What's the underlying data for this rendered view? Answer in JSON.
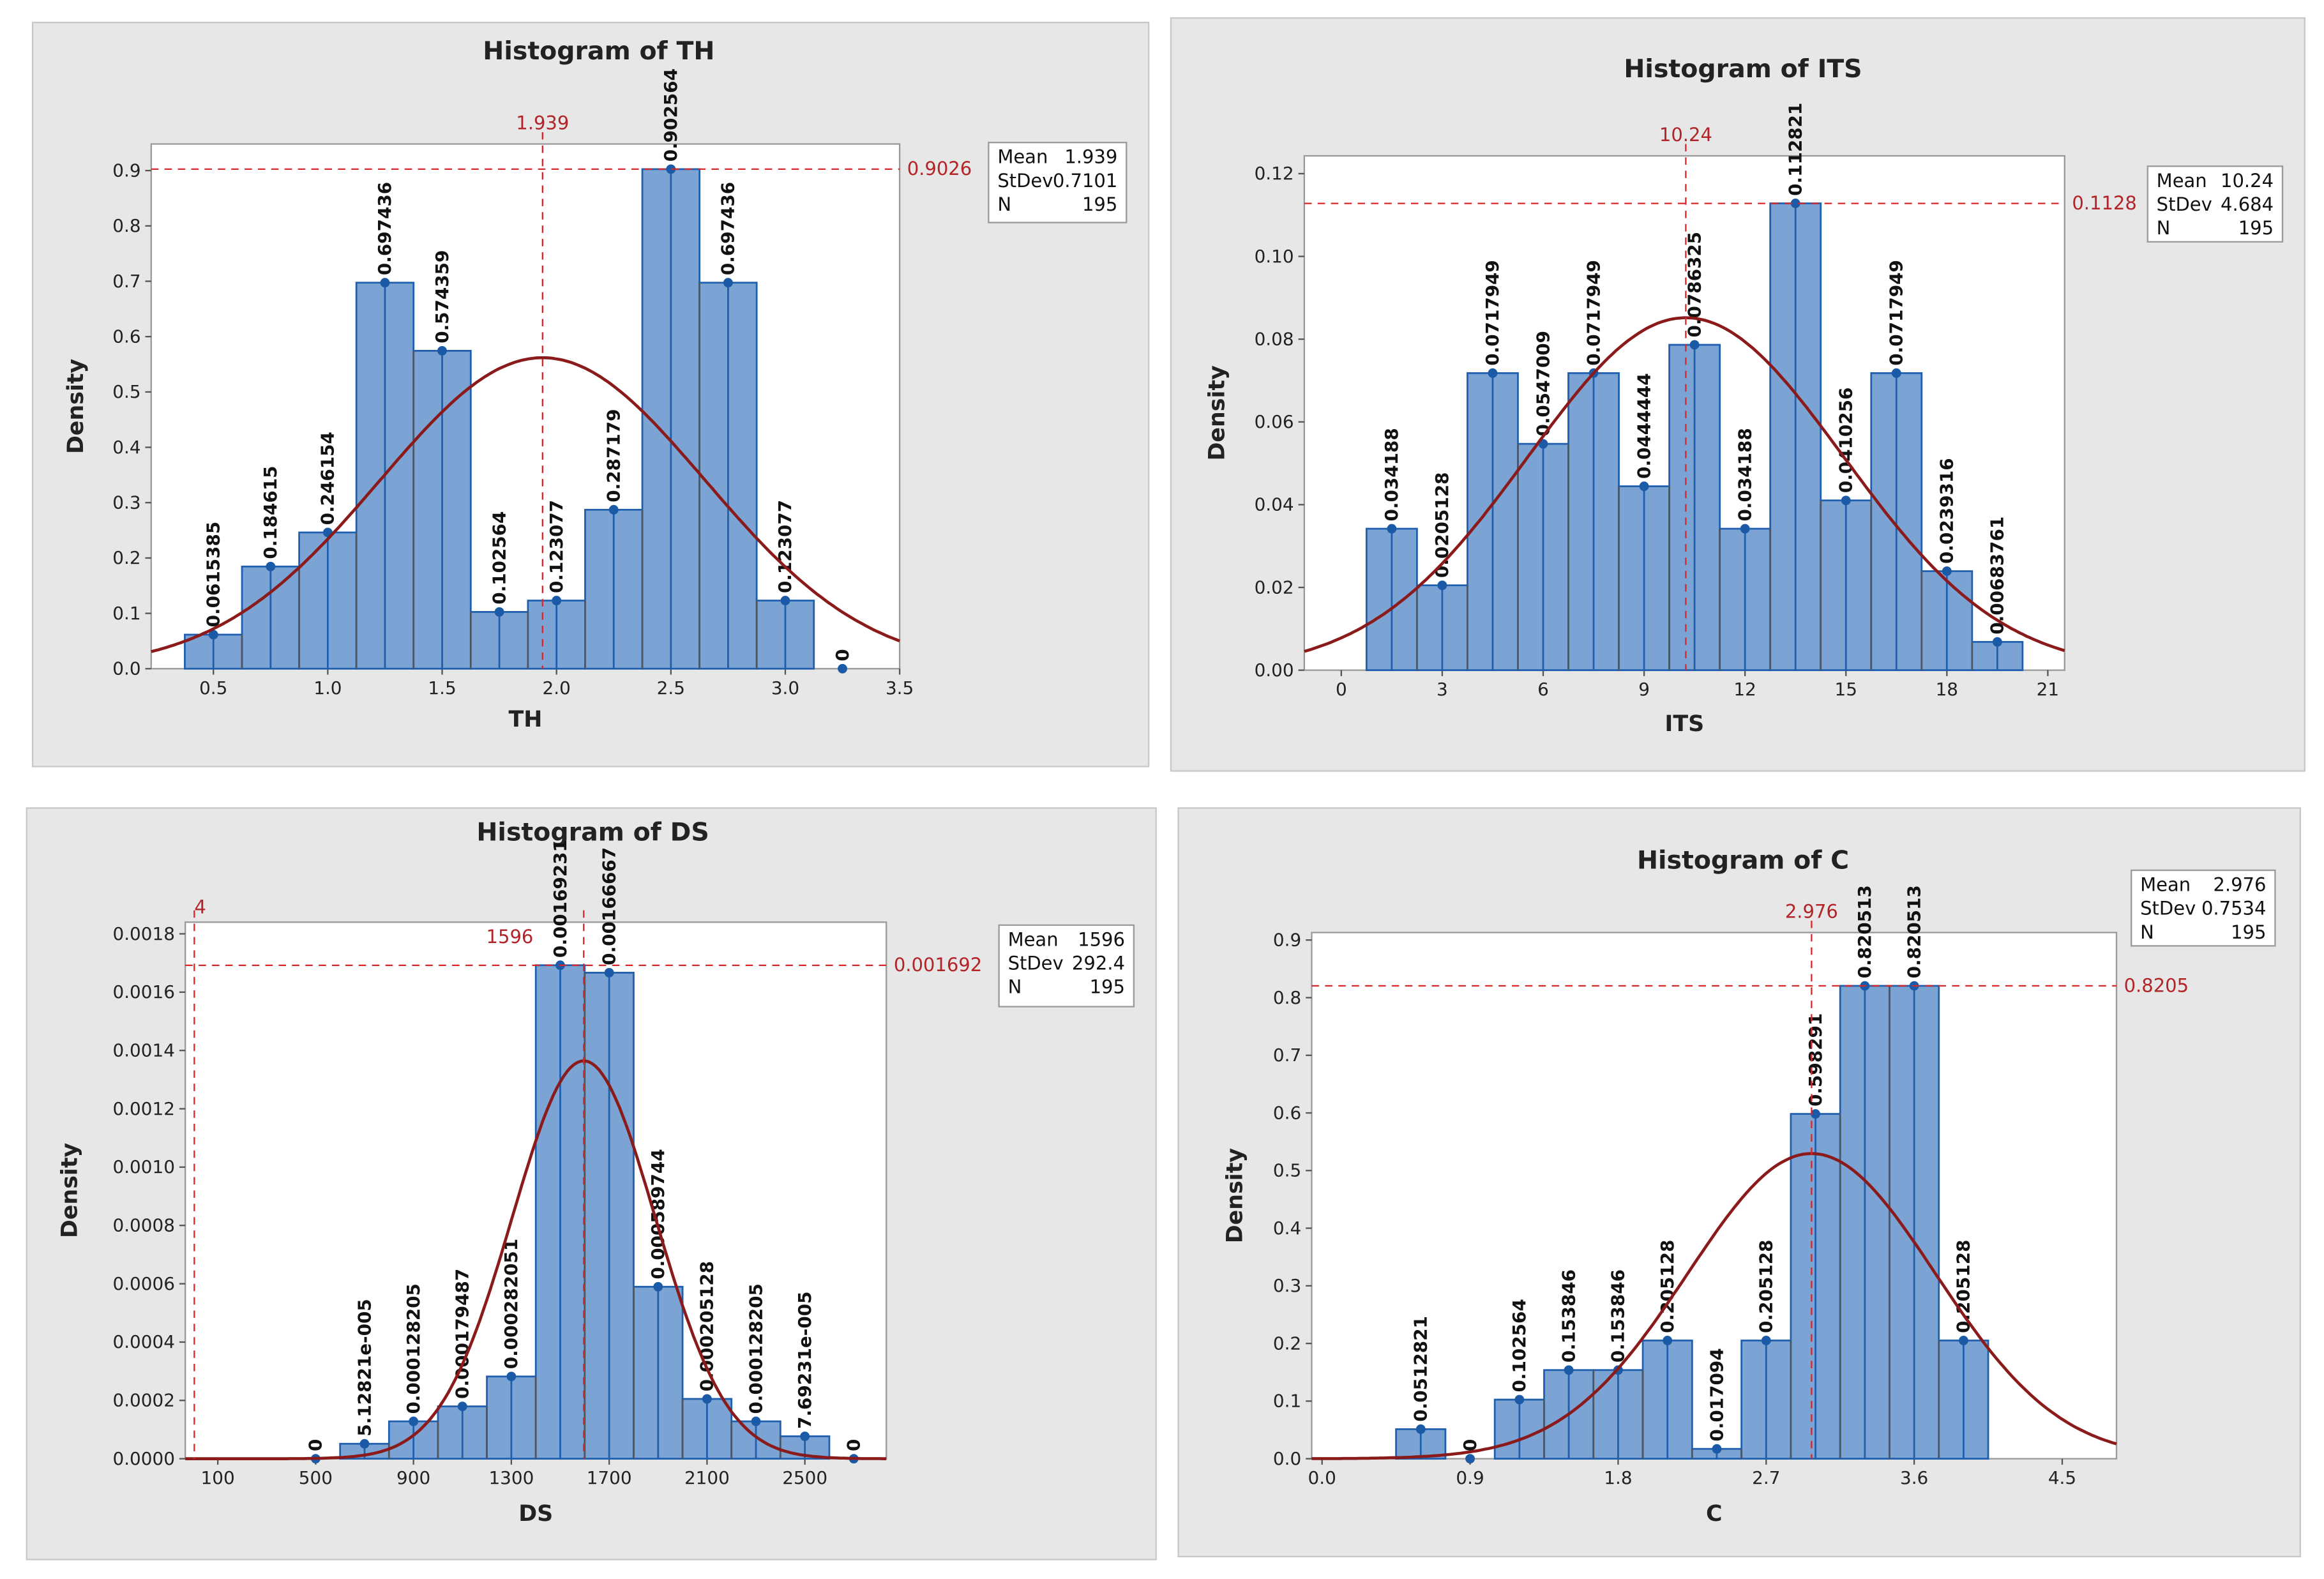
{
  "chart_data": [
    {
      "type": "bar",
      "title": "Histogram of TH",
      "xlabel": "TH",
      "ylabel": "Density",
      "bin_width": 0.25,
      "x": [
        0.5,
        0.75,
        1.0,
        1.25,
        1.5,
        1.75,
        2.0,
        2.25,
        2.5,
        2.75,
        3.0,
        3.25
      ],
      "values": [
        0.0615385,
        0.184615,
        0.246154,
        0.697436,
        0.574359,
        0.102564,
        0.123077,
        0.287179,
        0.902564,
        0.697436,
        0.123077,
        0
      ],
      "data_labels": [
        "0.0615385",
        "0.184615",
        "0.246154",
        "0.697436",
        "0.574359",
        "0.102564",
        "0.123077",
        "0.287179",
        "0.902564",
        "0.697436",
        "0.123077",
        "0"
      ],
      "xticks": [
        "0.5",
        "1.0",
        "1.5",
        "2.0",
        "2.5",
        "3.0",
        "3.5"
      ],
      "yticks": [
        "0.0",
        "0.1",
        "0.2",
        "0.3",
        "0.4",
        "0.5",
        "0.6",
        "0.7",
        "0.8",
        "0.9"
      ],
      "xlim": [
        0.228,
        3.5
      ],
      "ylim": [
        0,
        0.948
      ],
      "fit": "normal",
      "legend": {
        "mean_label": "Mean",
        "mean": "1.939",
        "stdev_label": "StDev",
        "stdev": "0.7101",
        "n_label": "N",
        "n": "195"
      },
      "reference_lines": [
        {
          "axis": "x",
          "value": 1.939,
          "label": "1.939"
        },
        {
          "axis": "y",
          "value": 0.9026,
          "label": "0.9026"
        }
      ],
      "colors": {
        "bar": "#7ba3d3",
        "bar_edge": "#1f5fae",
        "curve": "#8b1a1a",
        "reference": "#d9262b"
      }
    },
    {
      "type": "bar",
      "title": "Histogram of ITS",
      "xlabel": "ITS",
      "ylabel": "Density",
      "bin_width": 1.5,
      "x": [
        1.5,
        3,
        4.5,
        6,
        7.5,
        9,
        10.5,
        12,
        13.5,
        15,
        16.5,
        18,
        19.5
      ],
      "values": [
        0.034188,
        0.0205128,
        0.0717949,
        0.0547009,
        0.0717949,
        0.0444444,
        0.0786325,
        0.034188,
        0.112821,
        0.0410256,
        0.0717949,
        0.0239316,
        0.00683761
      ],
      "data_labels": [
        "0.034188",
        "0.0205128",
        "0.0717949",
        "0.0547009",
        "0.0717949",
        "0.0444444",
        "0.0786325",
        "0.034188",
        "0.112821",
        "0.0410256",
        "0.0717949",
        "0.0239316",
        "0.00683761"
      ],
      "xticks": [
        "0",
        "3",
        "6",
        "9",
        "12",
        "15",
        "18",
        "21"
      ],
      "yticks": [
        "0.00",
        "0.02",
        "0.04",
        "0.06",
        "0.08",
        "0.10",
        "0.12"
      ],
      "xlim": [
        -1.1,
        21.5
      ],
      "ylim": [
        0,
        0.1243
      ],
      "fit": "normal",
      "legend": {
        "mean_label": "Mean",
        "mean": "10.24",
        "stdev_label": "StDev",
        "stdev": "4.684",
        "n_label": "N",
        "n": "195"
      },
      "reference_lines": [
        {
          "axis": "x",
          "value": 10.24,
          "label": "10.24"
        },
        {
          "axis": "y",
          "value": 0.1128,
          "label": "0.1128"
        }
      ],
      "colors": {
        "bar": "#7ba3d3",
        "bar_edge": "#1f5fae",
        "curve": "#8b1a1a",
        "reference": "#d9262b"
      }
    },
    {
      "type": "bar",
      "title": "Histogram of DS",
      "xlabel": "DS",
      "ylabel": "Density",
      "bin_width": 200,
      "x": [
        500,
        700,
        900,
        1100,
        1300,
        1500,
        1700,
        1900,
        2100,
        2300,
        2500,
        2700
      ],
      "values": [
        0,
        5.12821e-05,
        0.000128205,
        0.000179487,
        0.000282051,
        0.00169231,
        0.00166667,
        0.000589744,
        0.000205128,
        0.000128205,
        7.69231e-05,
        0
      ],
      "data_labels": [
        "0",
        "5.12821e-005",
        "0.000128205",
        "0.000179487",
        "0.000282051",
        "0.00169231",
        "0.00166667",
        "0.000589744",
        "0.000205128",
        "0.000128205",
        "7.69231e-005",
        "0"
      ],
      "xticks": [
        "100",
        "500",
        "900",
        "1300",
        "1700",
        "2100",
        "2500"
      ],
      "yticks": [
        "0.0000",
        "0.0002",
        "0.0004",
        "0.0006",
        "0.0008",
        "0.0010",
        "0.0012",
        "0.0014",
        "0.0016",
        "0.0018"
      ],
      "xlim": [
        -33,
        2833
      ],
      "ylim": [
        0,
        0.00184
      ],
      "fit": "normal",
      "legend": {
        "mean_label": "Mean",
        "mean": "1596",
        "stdev_label": "StDev",
        "stdev": "292.4",
        "n_label": "N",
        "n": "195"
      },
      "reference_lines": [
        {
          "axis": "x",
          "value": 4,
          "label": "4"
        },
        {
          "axis": "x",
          "value": 1596,
          "label": "1596"
        },
        {
          "axis": "y",
          "value": 0.001692,
          "label": "0.001692"
        }
      ],
      "colors": {
        "bar": "#7ba3d3",
        "bar_edge": "#1f5fae",
        "curve": "#8b1a1a",
        "reference": "#d9262b"
      }
    },
    {
      "type": "bar",
      "title": "Histogram of C",
      "xlabel": "C",
      "ylabel": "Density",
      "bin_width": 0.3,
      "x": [
        0.6,
        0.9,
        1.2,
        1.5,
        1.8,
        2.1,
        2.4,
        2.7,
        3.0,
        3.3,
        3.6,
        3.9
      ],
      "values": [
        0.0512821,
        0,
        0.102564,
        0.153846,
        0.153846,
        0.205128,
        0.017094,
        0.205128,
        0.598291,
        0.820513,
        0.820513,
        0.205128
      ],
      "data_labels": [
        "0.0512821",
        "0",
        "0.102564",
        "0.153846",
        "0.153846",
        "0.205128",
        "0.017094",
        "0.205128",
        "0.598291",
        "0.820513",
        "0.820513",
        "0.205128"
      ],
      "xticks": [
        "0.0",
        "0.9",
        "1.8",
        "2.7",
        "3.6",
        "4.5"
      ],
      "yticks": [
        "0.0",
        "0.1",
        "0.2",
        "0.3",
        "0.4",
        "0.5",
        "0.6",
        "0.7",
        "0.8",
        "0.9"
      ],
      "xlim": [
        -0.063,
        4.83
      ],
      "ylim": [
        0,
        0.913
      ],
      "fit": "normal",
      "legend": {
        "mean_label": "Mean",
        "mean": "2.976",
        "stdev_label": "StDev",
        "stdev": "0.7534",
        "n_label": "N",
        "n": "195"
      },
      "reference_lines": [
        {
          "axis": "x",
          "value": 2.976,
          "label": "2.976"
        },
        {
          "axis": "y",
          "value": 0.8205,
          "label": "0.8205"
        }
      ],
      "colors": {
        "bar": "#7ba3d3",
        "bar_edge": "#1f5fae",
        "curve": "#8b1a1a",
        "reference": "#d9262b"
      }
    }
  ]
}
